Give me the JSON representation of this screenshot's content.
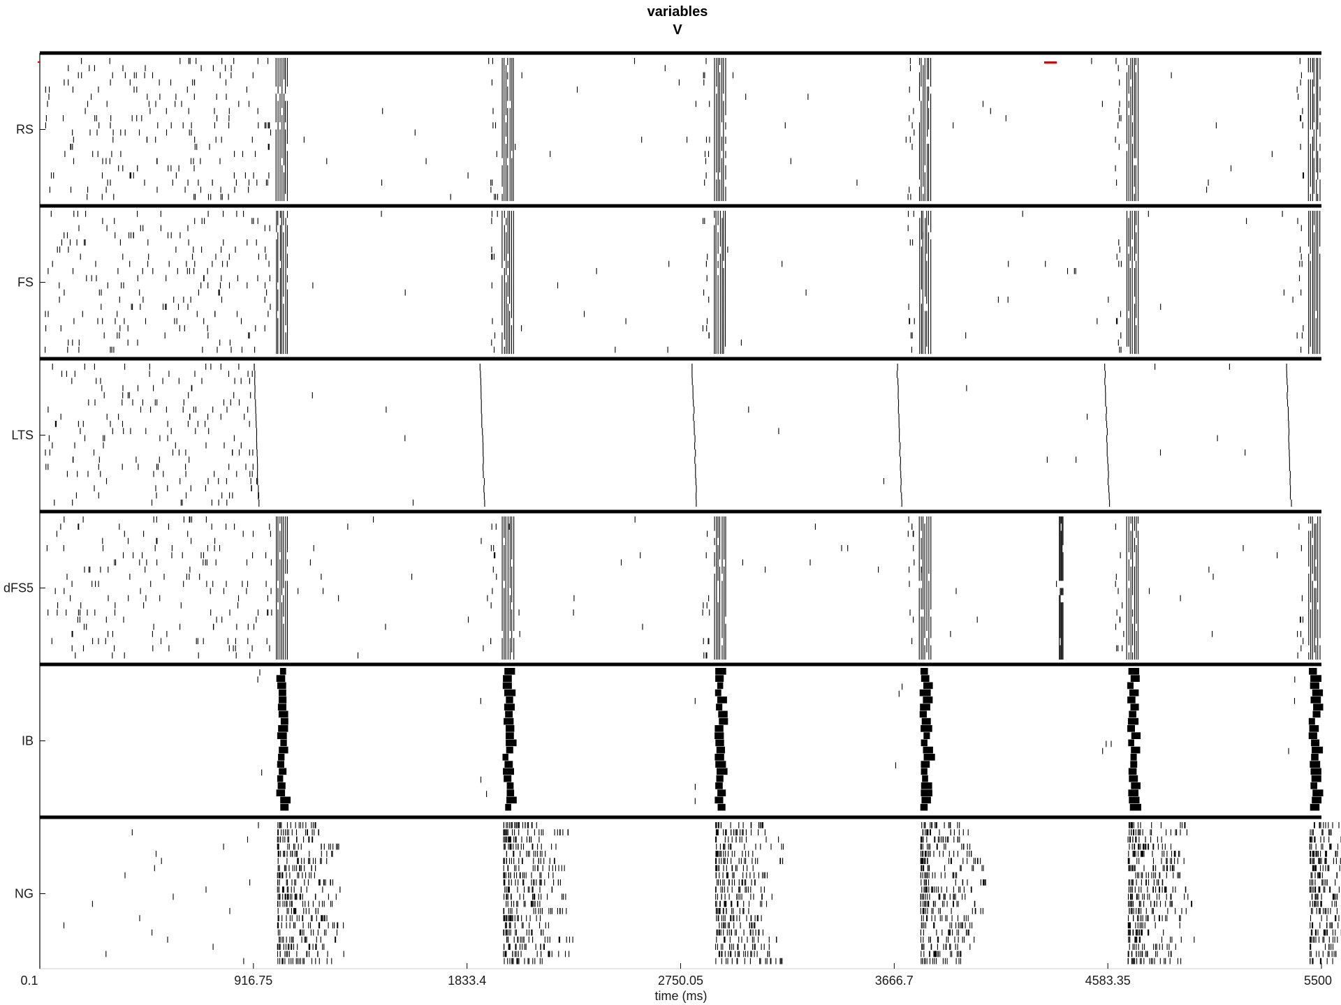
{
  "chart_data": {
    "type": "scatter",
    "title": "variables",
    "subtitle": "V",
    "xlabel": "time (ms)",
    "xlim": [
      0.1,
      5500
    ],
    "x_ticks": [
      "0.1",
      "916.75",
      "1833.4",
      "2750.05",
      "3666.7",
      "4583.35",
      "5500"
    ],
    "x_tick_values": [
      0.1,
      916.75,
      1833.4,
      2750.05,
      3666.7,
      4583.35,
      5500
    ],
    "grid": false,
    "legend": "none",
    "burst_times_ms": [
      1060,
      2030,
      2940,
      3820,
      4710,
      5490
    ],
    "populations": [
      {
        "name": "RS",
        "cells": 20,
        "activity": "sparse spikes, synchronized bursts"
      },
      {
        "name": "FS",
        "cells": 20,
        "activity": "sparse spikes, synchronized bursts"
      },
      {
        "name": "LTS",
        "cells": 20,
        "activity": "very sparse spikes, single-spike volleys"
      },
      {
        "name": "dFS5",
        "cells": 20,
        "activity": "sparse spikes, synchronized bursts, extra volley near 4380 ms"
      },
      {
        "name": "IB",
        "cells": 20,
        "activity": "dense bursts"
      },
      {
        "name": "NG",
        "cells": 20,
        "activity": "bursts with trailing spikes"
      }
    ],
    "colors": {
      "spikes": "#000000",
      "marker": "#e00000",
      "axes": "#000000"
    }
  }
}
